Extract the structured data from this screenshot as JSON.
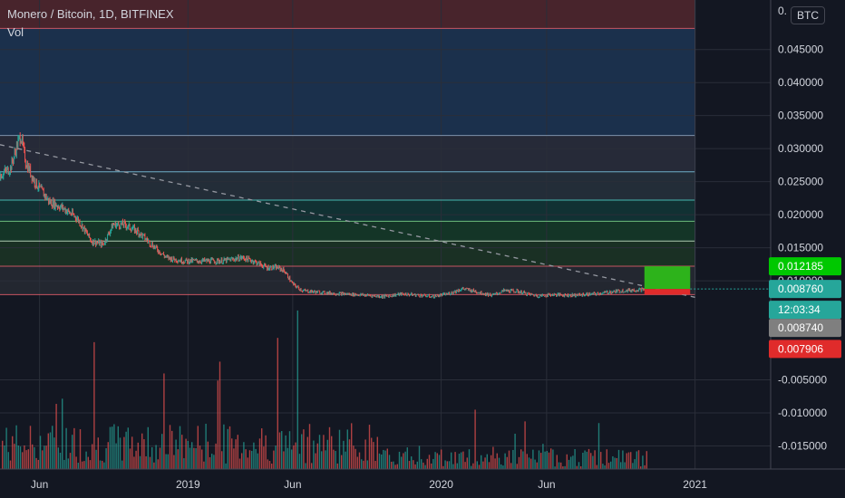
{
  "header": {
    "symbol": "Monero / Bitcoin, 1D, BITFINEX",
    "volume_label": "Vol",
    "currency": "BTC"
  },
  "colors": {
    "background": "#131722",
    "up": "#26a69a",
    "down": "#ef5350",
    "grid": "#2a2e39",
    "axis_text": "#d1d4dc",
    "trend": "#9598a1",
    "pos_green": "#2db31b",
    "pos_red": "#e02b2b"
  },
  "chart_data": {
    "type": "candlestick",
    "title": "Monero / Bitcoin, 1D, BITFINEX",
    "x_range": [
      "2018-04-05",
      "2021-04-20"
    ],
    "price_axis": {
      "ylim": [
        -0.0185,
        0.0525
      ],
      "ticks": [
        0.045,
        0.04,
        0.035,
        0.03,
        0.025,
        0.02,
        0.015,
        0.01,
        -0.005,
        -0.01,
        -0.015
      ],
      "tick_labels": [
        "0.045000",
        "0.040000",
        "0.035000",
        "0.030000",
        "0.025000",
        "0.020000",
        "0.015000",
        "0.010000",
        "-0.005000",
        "-0.010000",
        "-0.015000"
      ],
      "top_partial_label": "0."
    },
    "time_axis": {
      "ticks": [
        "2018-06-01",
        "2019-01-01",
        "2019-06-01",
        "2020-01-01",
        "2020-06-01",
        "2021-01-01"
      ],
      "tick_labels": [
        "Jun",
        "2019",
        "Jun",
        "2020",
        "Jun",
        "2021"
      ]
    },
    "price_path": [
      [
        "2018-04-05",
        0.026
      ],
      [
        "2018-04-20",
        0.027
      ],
      [
        "2018-05-01",
        0.031
      ],
      [
        "2018-05-05",
        0.032
      ],
      [
        "2018-05-12",
        0.028
      ],
      [
        "2018-05-25",
        0.025
      ],
      [
        "2018-06-15",
        0.022
      ],
      [
        "2018-07-05",
        0.021
      ],
      [
        "2018-07-25",
        0.0195
      ],
      [
        "2018-08-15",
        0.016
      ],
      [
        "2018-09-01",
        0.0155
      ],
      [
        "2018-09-15",
        0.0185
      ],
      [
        "2018-10-01",
        0.0185
      ],
      [
        "2018-10-20",
        0.0175
      ],
      [
        "2018-11-15",
        0.015
      ],
      [
        "2018-12-01",
        0.0135
      ],
      [
        "2018-12-25",
        0.013
      ],
      [
        "2019-01-20",
        0.013
      ],
      [
        "2019-02-20",
        0.013
      ],
      [
        "2019-03-20",
        0.0135
      ],
      [
        "2019-04-05",
        0.013
      ],
      [
        "2019-04-25",
        0.012
      ],
      [
        "2019-05-10",
        0.012
      ],
      [
        "2019-05-20",
        0.0115
      ],
      [
        "2019-06-01",
        0.0095
      ],
      [
        "2019-06-15",
        0.0085
      ],
      [
        "2019-07-15",
        0.0082
      ],
      [
        "2019-08-15",
        0.008
      ],
      [
        "2019-09-15",
        0.0078
      ],
      [
        "2019-10-10",
        0.0076
      ],
      [
        "2019-11-05",
        0.008
      ],
      [
        "2019-12-01",
        0.0078
      ],
      [
        "2019-12-20",
        0.0076
      ],
      [
        "2020-01-10",
        0.008
      ],
      [
        "2020-02-01",
        0.0088
      ],
      [
        "2020-02-15",
        0.0085
      ],
      [
        "2020-03-05",
        0.008
      ],
      [
        "2020-03-15",
        0.0078
      ],
      [
        "2020-04-01",
        0.0085
      ],
      [
        "2020-04-20",
        0.0084
      ],
      [
        "2020-05-05",
        0.008
      ],
      [
        "2020-05-20",
        0.0077
      ],
      [
        "2020-06-10",
        0.0079
      ],
      [
        "2020-07-10",
        0.0078
      ],
      [
        "2020-08-10",
        0.008
      ],
      [
        "2020-09-01",
        0.0083
      ],
      [
        "2020-09-20",
        0.0085
      ],
      [
        "2020-10-20",
        0.0087
      ]
    ],
    "horizontal_levels": [
      0.0482,
      0.032,
      0.0265,
      0.0222,
      0.019,
      0.016,
      0.0122,
      0.0079
    ],
    "trend_line": {
      "from": [
        "2018-04-05",
        0.0306
      ],
      "to": [
        "2021-01-01",
        0.0075
      ]
    },
    "position_box": {
      "from": "2020-10-20",
      "to": "2020-12-25",
      "entry": 0.00876,
      "target": 0.012185,
      "stop": 0.007906
    },
    "price_labels": [
      {
        "value": "0.012185",
        "color": "#00c800",
        "key": "target"
      },
      {
        "value": "0.008760",
        "color": "#26a69a",
        "key": "last"
      },
      {
        "value": "12:03:34",
        "color": "#26a69a",
        "key": "countdown"
      },
      {
        "value": "0.008740",
        "color": "#7f7f7f",
        "key": "prev"
      },
      {
        "value": "0.007906",
        "color": "#e02b2b",
        "key": "stop"
      }
    ],
    "volume": {
      "description_series": "random bars, red and teal, near zero level",
      "baseline": -0.0185
    }
  }
}
